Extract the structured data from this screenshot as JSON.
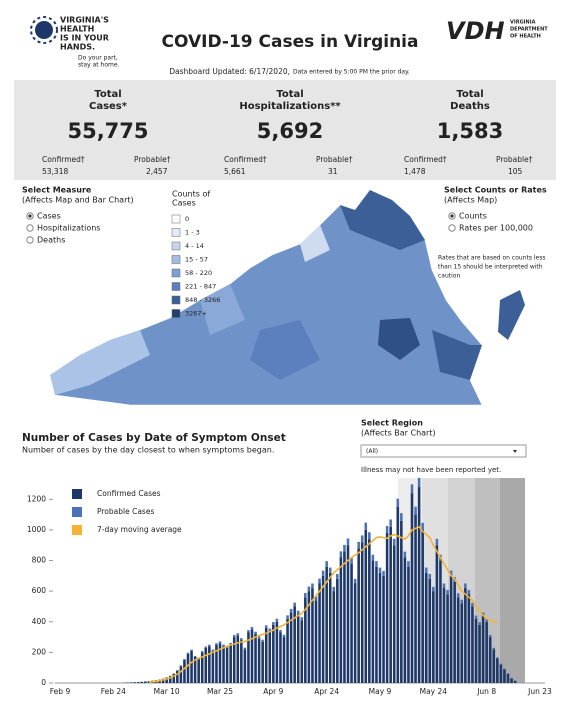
{
  "header": {
    "logo_lines": [
      "VIRGINIA'S",
      "HEALTH",
      "IS IN YOUR",
      "HANDS."
    ],
    "logo_tagline": [
      "Do your part,",
      "stay at home."
    ],
    "title": "COVID-19 Cases in Virginia",
    "vdh_mark": "VDH",
    "vdh_lines": [
      "VIRGINIA",
      "DEPARTMENT",
      "OF HEALTH"
    ],
    "updated": "Dashboard Updated: 6/17/2020,",
    "updated_note": "Data entered by 5:00 PM the prior day."
  },
  "stats": [
    {
      "label": [
        "Total",
        "Cases*"
      ],
      "value": "55,775",
      "left_label": "Confirmed†",
      "left_value": "53,318",
      "right_label": "Probable†",
      "right_value": "2,457"
    },
    {
      "label": [
        "Total",
        "Hospitalizations**"
      ],
      "value": "5,692",
      "left_label": "Confirmed†",
      "left_value": "5,661",
      "right_label": "Probable†",
      "right_value": "31"
    },
    {
      "label": [
        "Total",
        "Deaths"
      ],
      "value": "1,583",
      "left_label": "Confirmed†",
      "left_value": "1,478",
      "right_label": "Probable†",
      "right_value": "105"
    }
  ],
  "measure": {
    "title": "Select Measure",
    "subtitle": "(Affects Map and Bar Chart)",
    "options": [
      "Cases",
      "Hospitalizations",
      "Deaths"
    ]
  },
  "map_legend": {
    "title": [
      "Counts of",
      "Cases"
    ],
    "bins": [
      "0",
      "1 - 3",
      "4 - 14",
      "15 - 57",
      "58 - 220",
      "221 - 847",
      "848 - 3266",
      "3267+"
    ]
  },
  "rates": {
    "title": "Select Counts or Rates",
    "subtitle": "(Affects Map)",
    "options": [
      "Counts",
      "Rates per 100,000"
    ],
    "note": [
      "Rates that are based on counts less",
      "than 15 should be interpreted with",
      "caution"
    ]
  },
  "region": {
    "title": "Select Region",
    "subtitle": "(Affects Bar Chart)",
    "selected": "(All)",
    "note": "Illness may not have been reported yet."
  },
  "chart_data": {
    "type": "bar",
    "stacked": true,
    "title": "Number of Cases by Date of Symptom Onset",
    "subtitle": "Number of cases by the day closest to when symptoms began.",
    "categories": [
      "Feb 9",
      null,
      null,
      null,
      null,
      null,
      null,
      null,
      null,
      null,
      null,
      null,
      null,
      null,
      null,
      "Feb 24",
      null,
      null,
      null,
      null,
      null,
      null,
      null,
      null,
      null,
      null,
      null,
      null,
      null,
      null,
      "Mar 10",
      null,
      null,
      null,
      null,
      null,
      null,
      null,
      null,
      null,
      null,
      null,
      null,
      null,
      null,
      "Mar 25",
      null,
      null,
      null,
      null,
      null,
      null,
      null,
      null,
      null,
      null,
      null,
      null,
      null,
      null,
      "Apr 9",
      null,
      null,
      null,
      null,
      null,
      null,
      null,
      null,
      null,
      null,
      null,
      null,
      null,
      null,
      "Apr 24",
      null,
      null,
      null,
      null,
      null,
      null,
      null,
      null,
      null,
      null,
      null,
      null,
      null,
      null,
      "May 9",
      null,
      null,
      null,
      null,
      null,
      null,
      null,
      null,
      null,
      null,
      null,
      null,
      null,
      null,
      "May 24",
      null,
      null,
      null,
      null,
      null,
      null,
      null,
      null,
      null,
      null,
      null,
      null,
      null,
      null,
      "Jun 8",
      null,
      null,
      null,
      null,
      null,
      null,
      null,
      null,
      null,
      null,
      null,
      null,
      null,
      null,
      "Jun 23"
    ],
    "series": [
      {
        "name": "Confirmed Cases",
        "color": "#1c3768",
        "values": [
          0,
          0,
          0,
          0,
          0,
          0,
          0,
          0,
          0,
          0,
          0,
          0,
          0,
          0,
          0,
          0,
          0,
          0,
          2,
          3,
          4,
          5,
          6,
          8,
          10,
          12,
          15,
          18,
          22,
          28,
          35,
          45,
          60,
          80,
          110,
          150,
          190,
          210,
          170,
          160,
          200,
          230,
          240,
          210,
          250,
          260,
          240,
          230,
          250,
          300,
          310,
          280,
          220,
          330,
          350,
          320,
          290,
          270,
          360,
          340,
          380,
          400,
          330,
          300,
          420,
          460,
          500,
          450,
          410,
          560,
          600,
          620,
          540,
          650,
          700,
          760,
          720,
          600,
          680,
          820,
          860,
          900,
          780,
          650,
          880,
          920,
          1000,
          940,
          800,
          760,
          720,
          700,
          980,
          1020,
          900,
          1150,
          1060,
          820,
          760,
          1240,
          1100,
          1280,
          1000,
          720,
          680,
          600,
          900,
          800,
          620,
          580,
          700,
          660,
          560,
          520,
          620,
          580,
          500,
          420,
          380,
          440,
          400,
          300,
          220,
          160,
          120,
          90,
          60,
          30,
          15,
          0,
          0,
          0,
          0,
          0,
          0,
          0
        ]
      },
      {
        "name": "Probable Cases",
        "color": "#4a72b5",
        "values": [
          0,
          0,
          0,
          0,
          0,
          0,
          0,
          0,
          0,
          0,
          0,
          0,
          0,
          0,
          0,
          0,
          0,
          0,
          0,
          0,
          0,
          0,
          0,
          0,
          0,
          0,
          0,
          0,
          0,
          0,
          2,
          2,
          3,
          4,
          5,
          6,
          8,
          8,
          7,
          7,
          8,
          9,
          10,
          9,
          10,
          12,
          11,
          10,
          12,
          14,
          15,
          13,
          11,
          15,
          16,
          15,
          14,
          13,
          17,
          16,
          18,
          20,
          16,
          15,
          22,
          24,
          25,
          22,
          20,
          28,
          30,
          30,
          26,
          32,
          34,
          36,
          34,
          28,
          32,
          40,
          42,
          44,
          38,
          30,
          42,
          44,
          48,
          45,
          38,
          36,
          34,
          32,
          46,
          48,
          42,
          54,
          50,
          38,
          36,
          58,
          52,
          60,
          46,
          34,
          32,
          28,
          42,
          38,
          30,
          28,
          34,
          32,
          26,
          24,
          30,
          28,
          24,
          20,
          18,
          20,
          18,
          14,
          10,
          8,
          6,
          4,
          3,
          2,
          1,
          0,
          0,
          0,
          0,
          0,
          0,
          0
        ]
      },
      {
        "name": "7-day moving average",
        "color": "#f5b335",
        "kind": "line",
        "values": [
          null,
          null,
          null,
          null,
          null,
          null,
          null,
          null,
          null,
          null,
          null,
          null,
          null,
          null,
          null,
          null,
          null,
          null,
          null,
          null,
          null,
          null,
          null,
          null,
          null,
          5,
          8,
          11,
          15,
          20,
          26,
          34,
          45,
          58,
          75,
          95,
          115,
          135,
          150,
          160,
          170,
          180,
          190,
          200,
          210,
          220,
          230,
          240,
          248,
          255,
          262,
          268,
          272,
          280,
          290,
          300,
          310,
          318,
          325,
          335,
          345,
          360,
          370,
          380,
          395,
          410,
          425,
          440,
          455,
          480,
          510,
          540,
          570,
          600,
          630,
          660,
          690,
          720,
          740,
          760,
          780,
          800,
          820,
          835,
          850,
          870,
          890,
          910,
          930,
          950,
          955,
          950,
          945,
          960,
          970,
          960,
          950,
          940,
          960,
          1000,
          1010,
          1020,
          990,
          970,
          950,
          900,
          860,
          820,
          780,
          740,
          700,
          680,
          640,
          600,
          580,
          560,
          540,
          500,
          470,
          440,
          420,
          410,
          400,
          395,
          null,
          null,
          null,
          null,
          null,
          null,
          null,
          null,
          null,
          null,
          null,
          null
        ]
      }
    ],
    "ylim": [
      0,
      1300
    ],
    "yticks": [
      0,
      200,
      400,
      600,
      800,
      1000,
      1200
    ],
    "legend": "top-left"
  }
}
